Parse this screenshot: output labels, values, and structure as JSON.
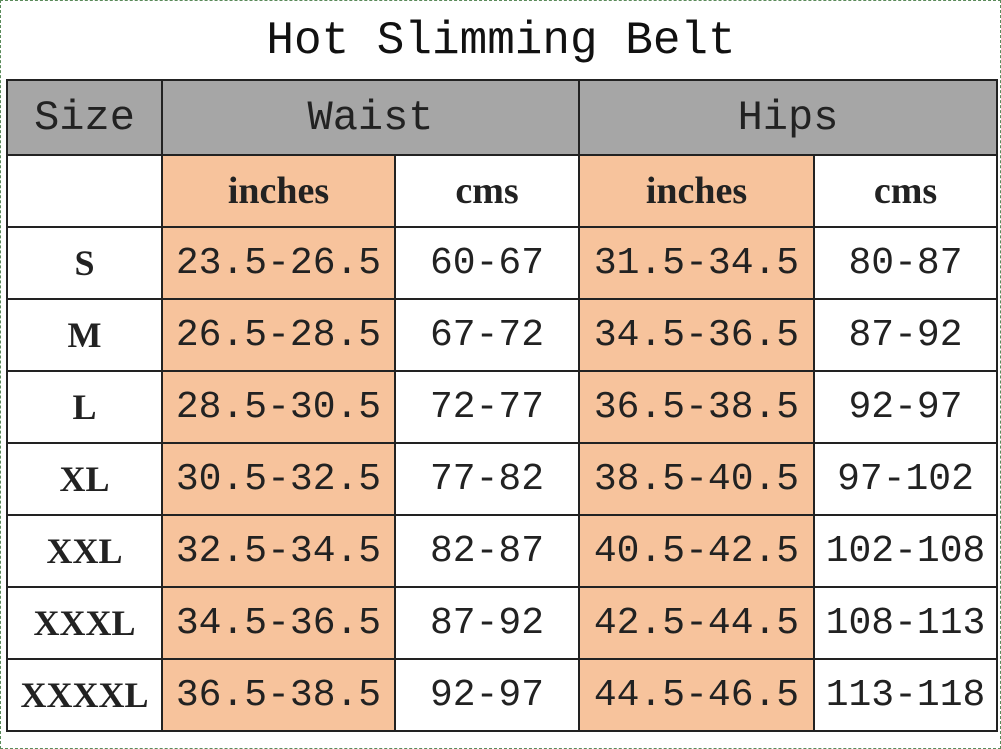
{
  "title": "Hot Slimming Belt",
  "header": {
    "size": "Size",
    "waist": "Waist",
    "hips": "Hips"
  },
  "subheader": [
    "inches",
    "cms",
    "inches",
    "cms"
  ],
  "rows": [
    [
      "S",
      "23.5-26.5",
      "60-67",
      "31.5-34.5",
      "80-87"
    ],
    [
      "M",
      "26.5-28.5",
      "67-72",
      "34.5-36.5",
      "87-92"
    ],
    [
      "L",
      "28.5-30.5",
      "72-77",
      "36.5-38.5",
      "92-97"
    ],
    [
      "XL",
      "30.5-32.5",
      "77-82",
      "38.5-40.5",
      "97-102"
    ],
    [
      "XXL",
      "32.5-34.5",
      "82-87",
      "40.5-42.5",
      "102-108"
    ],
    [
      "XXXL",
      "34.5-36.5",
      "87-92",
      "42.5-44.5",
      "108-113"
    ],
    [
      "XXXXL",
      "36.5-38.5",
      "92-97",
      "44.5-46.5",
      "113-118"
    ]
  ]
}
